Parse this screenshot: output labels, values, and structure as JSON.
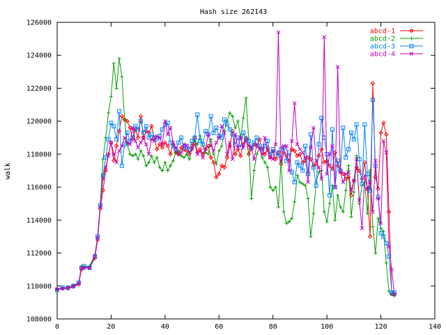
{
  "chart_data": {
    "type": "line",
    "title": "Hash size 262143",
    "xlabel": "",
    "ylabel": "walk",
    "xlim": [
      0,
      140
    ],
    "ylim": [
      108000,
      126000
    ],
    "xticks": [
      0,
      20,
      40,
      60,
      80,
      100,
      120,
      140
    ],
    "yticks": [
      108000,
      110000,
      112000,
      114000,
      116000,
      118000,
      120000,
      122000,
      124000,
      126000
    ],
    "grid": false,
    "legend_position": "top-right",
    "series": [
      {
        "name": "abcd-1",
        "color": "#ff0000",
        "marker": "diamond",
        "x": [
          0,
          2,
          4,
          6,
          8,
          9,
          10,
          12,
          14,
          15,
          16,
          17,
          18,
          19,
          20,
          21,
          22,
          23,
          24,
          25,
          26,
          27,
          28,
          29,
          30,
          31,
          32,
          33,
          34,
          35,
          36,
          37,
          38,
          39,
          40,
          41,
          42,
          43,
          44,
          45,
          46,
          47,
          48,
          49,
          50,
          51,
          52,
          53,
          54,
          55,
          56,
          57,
          58,
          59,
          60,
          61,
          62,
          63,
          64,
          65,
          66,
          67,
          68,
          69,
          70,
          71,
          72,
          73,
          74,
          75,
          76,
          77,
          78,
          79,
          80,
          81,
          82,
          83,
          84,
          85,
          86,
          87,
          88,
          89,
          90,
          91,
          92,
          93,
          94,
          95,
          96,
          97,
          98,
          99,
          100,
          101,
          102,
          103,
          104,
          105,
          106,
          107,
          108,
          109,
          110,
          111,
          112,
          113,
          114,
          115,
          116,
          117,
          118,
          119,
          120,
          121,
          122,
          123,
          124,
          125
        ],
        "y": [
          109800,
          109850,
          109850,
          109950,
          110100,
          111000,
          111100,
          111100,
          111700,
          112800,
          114700,
          115800,
          117000,
          118000,
          118700,
          117600,
          118500,
          119400,
          120300,
          120100,
          120000,
          119600,
          118900,
          119500,
          119000,
          120300,
          119000,
          119400,
          119300,
          119700,
          119000,
          118300,
          118600,
          118400,
          118700,
          118500,
          118000,
          118600,
          118100,
          118000,
          118400,
          118300,
          118200,
          118000,
          118500,
          119000,
          118100,
          118300,
          118000,
          118300,
          118500,
          117800,
          117500,
          116600,
          116800,
          117300,
          117200,
          117800,
          118500,
          119400,
          118000,
          118300,
          117900,
          118600,
          119000,
          118000,
          118300,
          118600,
          118500,
          118900,
          118300,
          118000,
          118400,
          117800,
          118200,
          117700,
          118100,
          117400,
          118100,
          117900,
          117600,
          118300,
          118200,
          117900,
          118000,
          117500,
          117600,
          117800,
          117700,
          117300,
          117400,
          117900,
          118300,
          117500,
          117600,
          117300,
          117100,
          118100,
          117300,
          117000,
          116800,
          116500,
          116600,
          115500,
          116400,
          117200,
          117000,
          116500,
          117500,
          115900,
          113000,
          122300,
          116600,
          115900,
          119300,
          119900,
          119200,
          114500,
          109500,
          109500
        ]
      },
      {
        "name": "abcd-2",
        "color": "#00a000",
        "marker": "plus",
        "x": [
          0,
          2,
          4,
          6,
          8,
          9,
          10,
          12,
          14,
          15,
          16,
          17,
          18,
          19,
          20,
          21,
          22,
          23,
          24,
          25,
          26,
          27,
          28,
          29,
          30,
          31,
          32,
          33,
          34,
          35,
          36,
          37,
          38,
          39,
          40,
          41,
          42,
          43,
          44,
          45,
          46,
          47,
          48,
          49,
          50,
          51,
          52,
          53,
          54,
          55,
          56,
          57,
          58,
          59,
          60,
          61,
          62,
          63,
          64,
          65,
          66,
          67,
          68,
          69,
          70,
          71,
          72,
          73,
          74,
          75,
          76,
          77,
          78,
          79,
          80,
          81,
          82,
          83,
          84,
          85,
          86,
          87,
          88,
          89,
          90,
          91,
          92,
          93,
          94,
          95,
          96,
          97,
          98,
          99,
          100,
          101,
          102,
          103,
          104,
          105,
          106,
          107,
          108,
          109,
          110,
          111,
          112,
          113,
          114,
          115,
          116,
          117,
          118,
          119,
          120,
          121,
          122,
          123,
          124,
          125
        ],
        "y": [
          109800,
          109900,
          109900,
          110050,
          110200,
          111200,
          111200,
          111200,
          111900,
          113000,
          115000,
          117700,
          119000,
          120500,
          121500,
          123500,
          122000,
          123800,
          122700,
          120100,
          118600,
          118000,
          117900,
          118000,
          117700,
          118200,
          117900,
          117300,
          117500,
          117900,
          117500,
          117800,
          117200,
          117000,
          117500,
          117000,
          117300,
          117600,
          118100,
          118200,
          117900,
          117800,
          118000,
          117700,
          118300,
          118800,
          118600,
          119100,
          118500,
          118100,
          118000,
          118900,
          118000,
          117400,
          118200,
          118500,
          119400,
          120000,
          120500,
          120300,
          119600,
          120000,
          119000,
          120200,
          121400,
          118900,
          115300,
          117000,
          118000,
          118400,
          117800,
          117500,
          117200,
          116000,
          115800,
          116000,
          114800,
          117600,
          114500,
          113800,
          113900,
          114100,
          115100,
          116700,
          116300,
          116200,
          116100,
          115300,
          113000,
          114400,
          116300,
          116900,
          117000,
          114500,
          113900,
          115000,
          116100,
          114000,
          115500,
          114800,
          114500,
          115800,
          117300,
          114200,
          115700,
          117900,
          115000,
          116100,
          116300,
          114400,
          117000,
          113600,
          112000,
          114100,
          113500,
          113300,
          111400,
          109700,
          109500,
          109400
        ]
      },
      {
        "name": "abcd-3",
        "color": "#0080ff",
        "marker": "square",
        "x": [
          0,
          2,
          4,
          6,
          8,
          9,
          10,
          12,
          14,
          15,
          16,
          17,
          18,
          19,
          20,
          21,
          22,
          23,
          24,
          25,
          26,
          27,
          28,
          29,
          30,
          31,
          32,
          33,
          34,
          35,
          36,
          37,
          38,
          39,
          40,
          41,
          42,
          43,
          44,
          45,
          46,
          47,
          48,
          49,
          50,
          51,
          52,
          53,
          54,
          55,
          56,
          57,
          58,
          59,
          60,
          61,
          62,
          63,
          64,
          65,
          66,
          67,
          68,
          69,
          70,
          71,
          72,
          73,
          74,
          75,
          76,
          77,
          78,
          79,
          80,
          81,
          82,
          83,
          84,
          85,
          86,
          87,
          88,
          89,
          90,
          91,
          92,
          93,
          94,
          95,
          96,
          97,
          98,
          99,
          100,
          101,
          102,
          103,
          104,
          105,
          106,
          107,
          108,
          109,
          110,
          111,
          112,
          113,
          114,
          115,
          116,
          117,
          118,
          119,
          120,
          121,
          122,
          123,
          124,
          125
        ],
        "y": [
          109750,
          109900,
          109900,
          110000,
          110200,
          111100,
          111200,
          111100,
          111800,
          113000,
          114900,
          116700,
          117800,
          118900,
          119900,
          119700,
          118900,
          120600,
          117300,
          118600,
          119300,
          118800,
          119000,
          119700,
          119500,
          120000,
          119300,
          119700,
          119000,
          119200,
          119000,
          118900,
          119100,
          119500,
          119800,
          119900,
          118700,
          118500,
          118300,
          118700,
          119000,
          118400,
          118500,
          118300,
          118800,
          119000,
          120400,
          118800,
          118600,
          119400,
          119200,
          120300,
          119300,
          119600,
          119100,
          119000,
          120100,
          119800,
          119500,
          119200,
          118600,
          119000,
          118400,
          119300,
          118900,
          118800,
          118400,
          118700,
          119000,
          118500,
          118300,
          118500,
          118800,
          118000,
          118300,
          118100,
          117900,
          118300,
          118400,
          117600,
          118100,
          116900,
          116300,
          117500,
          117300,
          117000,
          118500,
          116800,
          119200,
          117200,
          116100,
          118600,
          120200,
          119000,
          118000,
          115500,
          119500,
          116000,
          117600,
          117000,
          119600,
          117800,
          118300,
          119300,
          118900,
          119800,
          117700,
          116200,
          119800,
          116800,
          115800,
          121300,
          117300,
          115400,
          113200,
          113000,
          112600,
          111800,
          109600,
          109600
        ]
      },
      {
        "name": "abcd-4",
        "color": "#c000c0",
        "marker": "x",
        "x": [
          0,
          2,
          4,
          6,
          8,
          9,
          10,
          12,
          14,
          15,
          16,
          17,
          18,
          19,
          20,
          21,
          22,
          23,
          24,
          25,
          26,
          27,
          28,
          29,
          30,
          31,
          32,
          33,
          34,
          35,
          36,
          37,
          38,
          39,
          40,
          41,
          42,
          43,
          44,
          45,
          46,
          47,
          48,
          49,
          50,
          51,
          52,
          53,
          54,
          55,
          56,
          57,
          58,
          59,
          60,
          61,
          62,
          63,
          64,
          65,
          66,
          67,
          68,
          69,
          70,
          71,
          72,
          73,
          74,
          75,
          76,
          77,
          78,
          79,
          80,
          81,
          82,
          83,
          84,
          85,
          86,
          87,
          88,
          89,
          90,
          91,
          92,
          93,
          94,
          95,
          96,
          97,
          98,
          99,
          100,
          101,
          102,
          103,
          104,
          105,
          106,
          107,
          108,
          109,
          110,
          111,
          112,
          113,
          114,
          115,
          116,
          117,
          118,
          119,
          120,
          121,
          122,
          123,
          124,
          125
        ],
        "y": [
          109800,
          109850,
          109900,
          110000,
          110150,
          111100,
          111100,
          111100,
          111800,
          112900,
          114800,
          116500,
          117200,
          117900,
          118700,
          118000,
          117500,
          118200,
          118500,
          119000,
          118700,
          118600,
          119600,
          118800,
          118400,
          118700,
          119000,
          118600,
          118000,
          118900,
          118800,
          119100,
          119000,
          118600,
          120000,
          119200,
          119600,
          118700,
          118400,
          118000,
          118100,
          118600,
          118500,
          118100,
          118300,
          118600,
          118000,
          118200,
          117800,
          118300,
          119200,
          118500,
          118200,
          118700,
          119000,
          119700,
          119300,
          118000,
          118700,
          117700,
          119200,
          118400,
          119000,
          118400,
          118800,
          118500,
          118400,
          117700,
          118600,
          118300,
          118000,
          119000,
          118200,
          117800,
          117700,
          118600,
          125400,
          117600,
          118500,
          118500,
          117000,
          118800,
          121100,
          118600,
          118300,
          118100,
          117800,
          116300,
          118400,
          119600,
          117600,
          117200,
          116500,
          125100,
          116800,
          118000,
          118500,
          116000,
          123300,
          116900,
          116300,
          116800,
          116900,
          115800,
          116400,
          117700,
          115200,
          113500,
          116700,
          115900,
          116300,
          114500,
          117600,
          115300,
          113800,
          118800,
          118100,
          112400,
          111000,
          109500
        ]
      }
    ]
  }
}
